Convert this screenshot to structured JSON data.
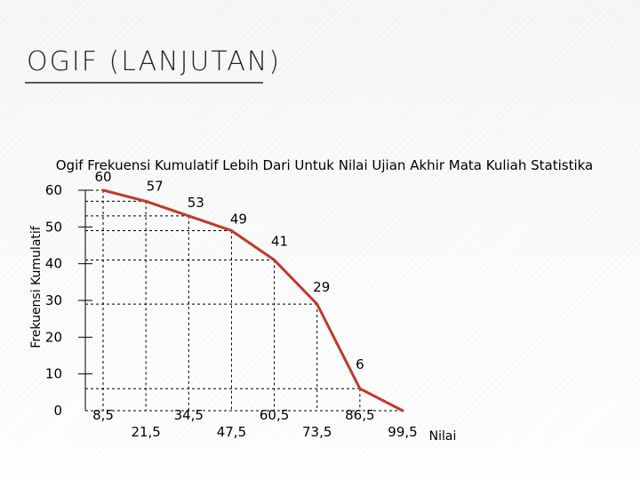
{
  "slide": {
    "title": "OGIF (LANJUTAN)"
  },
  "chart_data": {
    "type": "line",
    "title": "Ogif Frekuensi Kumulatif Lebih Dari Untuk Nilai Ujian Akhir Mata Kuliah Statistika",
    "xlabel": "Nilai",
    "ylabel": "Frekuensi Kumulatif",
    "x_tick_labels": [
      "8,5",
      "21,5",
      "34,5",
      "47,5",
      "60,5",
      "73,5",
      "86,5",
      "99,5"
    ],
    "y_tick_labels": [
      "0",
      "10",
      "20",
      "30",
      "40",
      "50",
      "60"
    ],
    "ylim": [
      0,
      60
    ],
    "x": [
      8.5,
      21.5,
      34.5,
      47.5,
      60.5,
      73.5,
      86.5,
      99.5
    ],
    "y": [
      60,
      57,
      53,
      49,
      41,
      29,
      6,
      0
    ],
    "point_labels": [
      "60",
      "57",
      "53",
      "49",
      "41",
      "29",
      "6",
      ""
    ],
    "line_color": "#c0392b",
    "guide_line_color": "#000000",
    "guide_line_style": "dashed",
    "grid": false
  }
}
